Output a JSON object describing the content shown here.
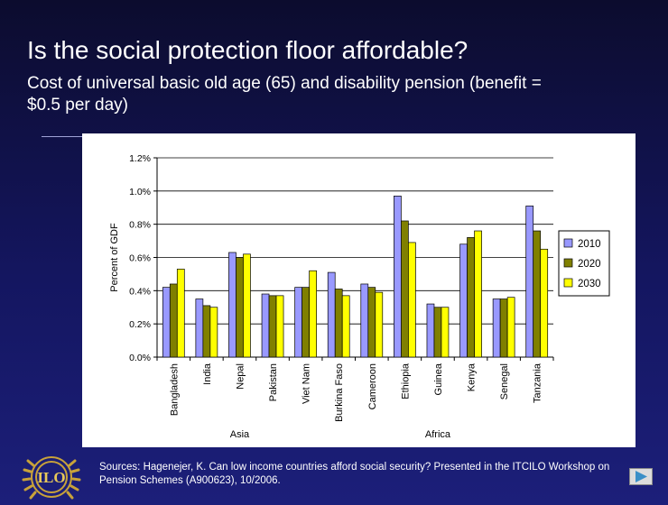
{
  "slide": {
    "title": "Is the social protection floor affordable?",
    "subtitle": "Cost of universal basic old age (65) and disability pension (benefit = $0.5 per day)",
    "sources": "Sources: Hagenejer, K. Can low income countries afford social security? Presented in the ITCILO Workshop on Pension Schemes (A900623), 10/2006.",
    "next_icon": "play-triangle-icon",
    "logo_text": "ILO"
  },
  "chart_data": {
    "type": "bar",
    "categories": [
      "Bangladesh",
      "India",
      "Nepal",
      "Pakistan",
      "Viet Nam",
      "Burkina Faso",
      "Cameroon",
      "Ethiopia",
      "Guinea",
      "Kenya",
      "Senegal",
      "Tanzania"
    ],
    "groups": [
      {
        "name": "Asia",
        "categories": [
          "Bangladesh",
          "India",
          "Nepal",
          "Pakistan",
          "Viet Nam"
        ]
      },
      {
        "name": "Africa",
        "categories": [
          "Burkina Faso",
          "Cameroon",
          "Ethiopia",
          "Guinea",
          "Kenya",
          "Senegal",
          "Tanzania"
        ]
      }
    ],
    "series": [
      {
        "name": "2010",
        "color": "#9999ff",
        "values": [
          0.42,
          0.35,
          0.63,
          0.38,
          0.42,
          0.51,
          0.44,
          0.97,
          0.32,
          0.68,
          0.35,
          0.91
        ]
      },
      {
        "name": "2020",
        "color": "#808000",
        "values": [
          0.44,
          0.31,
          0.6,
          0.37,
          0.42,
          0.41,
          0.42,
          0.82,
          0.3,
          0.72,
          0.35,
          0.76
        ]
      },
      {
        "name": "2030",
        "color": "#ffff00",
        "values": [
          0.53,
          0.3,
          0.62,
          0.37,
          0.52,
          0.37,
          0.39,
          0.69,
          0.3,
          0.76,
          0.36,
          0.65
        ]
      }
    ],
    "ylabel": "Percent of GDF",
    "ylim": [
      0,
      1.2
    ],
    "yticks": [
      0,
      0.2,
      0.4,
      0.6,
      0.8,
      1.0,
      1.2
    ],
    "ytick_labels": [
      "0.0%",
      "0.2%",
      "0.4%",
      "0.6%",
      "0.8%",
      "1.0%",
      "1.2%"
    ],
    "grid": true,
    "legend": "right"
  }
}
